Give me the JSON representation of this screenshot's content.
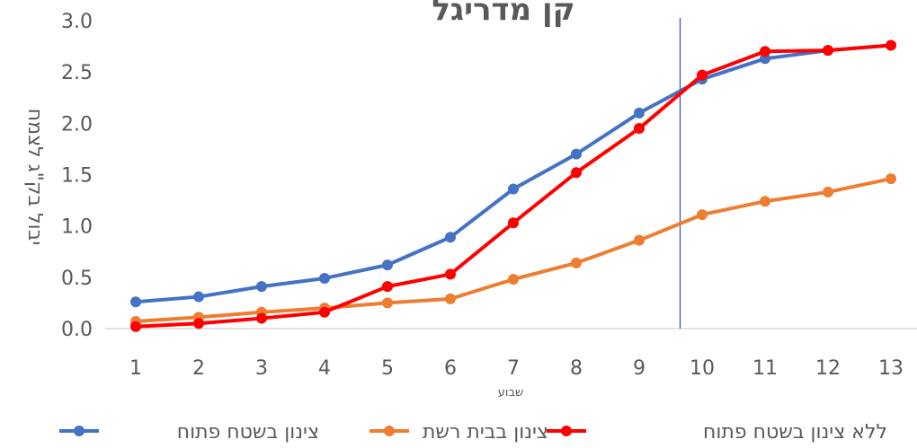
{
  "chart_data": {
    "type": "line",
    "title": "קן מדריגל",
    "xlabel": "שבוע",
    "ylabel": "יבול בק\"ג לצמח",
    "categories": [
      "1",
      "2",
      "3",
      "4",
      "5",
      "6",
      "7",
      "8",
      "9",
      "10",
      "11",
      "12",
      "13"
    ],
    "yticks": [
      "0.0",
      "0.5",
      "1.0",
      "1.5",
      "2.0",
      "2.5",
      "3.0"
    ],
    "ylim": [
      0,
      3.0
    ],
    "vline_after_category": 9.65,
    "legend_position": "bottom",
    "grid": false,
    "series": [
      {
        "name": "צינון בשטח פתוח",
        "color": "#4472C4",
        "values": [
          0.26,
          0.31,
          0.41,
          0.49,
          0.62,
          0.89,
          1.36,
          1.7,
          2.1,
          2.43,
          2.63,
          2.71,
          2.76
        ]
      },
      {
        "name": "צינון בבית רשת",
        "color": "#ED7D31",
        "values": [
          0.07,
          0.11,
          0.16,
          0.2,
          0.25,
          0.29,
          0.48,
          0.64,
          0.86,
          1.11,
          1.24,
          1.33,
          1.46
        ]
      },
      {
        "name": "ללא צינון בשטח פתוח",
        "color": "#FF0000",
        "values": [
          0.02,
          0.05,
          0.1,
          0.16,
          0.41,
          0.53,
          1.03,
          1.52,
          1.95,
          2.47,
          2.7,
          2.71,
          2.76
        ]
      }
    ],
    "vline_color": "#2E4BC6"
  }
}
